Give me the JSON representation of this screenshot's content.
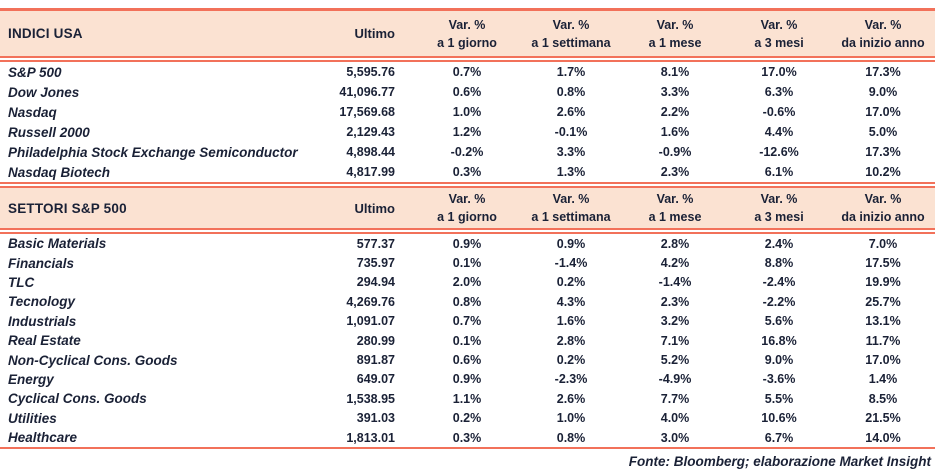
{
  "colors": {
    "accent_border": "#f2715a",
    "header_background": "#fbe2d2",
    "text": "#1a2136"
  },
  "footer": {
    "source_note": "Fonte: Bloomberg; elaborazione Market Insight"
  },
  "chart_data": [
    {
      "type": "table",
      "title": "INDICI USA",
      "value_header": "Ultimo",
      "var_label": "Var. %",
      "period_headers": [
        "a 1 giorno",
        "a 1 settimana",
        "a 1 mese",
        "a 3 mesi",
        "da inizio anno"
      ],
      "rows": [
        {
          "name": "S&P 500",
          "ultimo": "5,595.76",
          "vars": [
            "0.7%",
            "1.7%",
            "8.1%",
            "17.0%",
            "17.3%"
          ]
        },
        {
          "name": "Dow Jones",
          "ultimo": "41,096.77",
          "vars": [
            "0.6%",
            "0.8%",
            "3.3%",
            "6.3%",
            "9.0%"
          ]
        },
        {
          "name": "Nasdaq",
          "ultimo": "17,569.68",
          "vars": [
            "1.0%",
            "2.6%",
            "2.2%",
            "-0.6%",
            "17.0%"
          ]
        },
        {
          "name": "Russell 2000",
          "ultimo": "2,129.43",
          "vars": [
            "1.2%",
            "-0.1%",
            "1.6%",
            "4.4%",
            "5.0%"
          ]
        },
        {
          "name": "Philadelphia Stock Exchange Semiconductor",
          "ultimo": "4,898.44",
          "vars": [
            "-0.2%",
            "3.3%",
            "-0.9%",
            "-12.6%",
            "17.3%"
          ]
        },
        {
          "name": "Nasdaq Biotech",
          "ultimo": "4,817.99",
          "vars": [
            "0.3%",
            "1.3%",
            "2.3%",
            "6.1%",
            "10.2%"
          ]
        }
      ]
    },
    {
      "type": "table",
      "title": "SETTORI S&P 500",
      "value_header": "Ultimo",
      "var_label": "Var. %",
      "period_headers": [
        "a 1 giorno",
        "a 1 settimana",
        "a 1 mese",
        "a 3 mesi",
        "da inizio anno"
      ],
      "rows": [
        {
          "name": "Basic Materials",
          "ultimo": "577.37",
          "vars": [
            "0.9%",
            "0.9%",
            "2.8%",
            "2.4%",
            "7.0%"
          ]
        },
        {
          "name": "Financials",
          "ultimo": "735.97",
          "vars": [
            "0.1%",
            "-1.4%",
            "4.2%",
            "8.8%",
            "17.5%"
          ]
        },
        {
          "name": "TLC",
          "ultimo": "294.94",
          "vars": [
            "2.0%",
            "0.2%",
            "-1.4%",
            "-2.4%",
            "19.9%"
          ]
        },
        {
          "name": "Tecnology",
          "ultimo": "4,269.76",
          "vars": [
            "0.8%",
            "4.3%",
            "2.3%",
            "-2.2%",
            "25.7%"
          ]
        },
        {
          "name": "Industrials",
          "ultimo": "1,091.07",
          "vars": [
            "0.7%",
            "1.6%",
            "3.2%",
            "5.6%",
            "13.1%"
          ]
        },
        {
          "name": "Real Estate",
          "ultimo": "280.99",
          "vars": [
            "0.1%",
            "2.8%",
            "7.1%",
            "16.8%",
            "11.7%"
          ]
        },
        {
          "name": "Non-Cyclical Cons. Goods",
          "ultimo": "891.87",
          "vars": [
            "0.6%",
            "0.2%",
            "5.2%",
            "9.0%",
            "17.0%"
          ]
        },
        {
          "name": "Energy",
          "ultimo": "649.07",
          "vars": [
            "0.9%",
            "-2.3%",
            "-4.9%",
            "-3.6%",
            "1.4%"
          ]
        },
        {
          "name": "Cyclical Cons. Goods",
          "ultimo": "1,538.95",
          "vars": [
            "1.1%",
            "2.6%",
            "7.7%",
            "5.5%",
            "8.5%"
          ]
        },
        {
          "name": "Utilities",
          "ultimo": "391.03",
          "vars": [
            "0.2%",
            "1.0%",
            "4.0%",
            "10.6%",
            "21.5%"
          ]
        },
        {
          "name": "Healthcare",
          "ultimo": "1,813.01",
          "vars": [
            "0.3%",
            "0.8%",
            "3.0%",
            "6.7%",
            "14.0%"
          ]
        }
      ]
    }
  ]
}
